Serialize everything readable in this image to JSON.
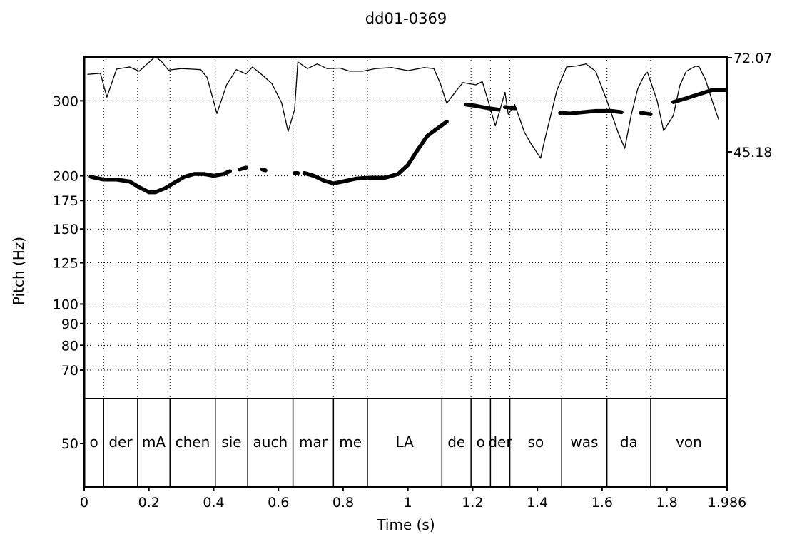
{
  "chart_data": {
    "type": "line",
    "title": "dd01-0369",
    "xlabel": "Time (s)",
    "ylabel": "Pitch (Hz)",
    "x_range": [
      0,
      1.986
    ],
    "x_ticks": [
      "0",
      "0.2",
      "0.4",
      "0.6",
      "0.8",
      "1",
      "1.2",
      "1.4",
      "1.6",
      "1.8",
      "1.986"
    ],
    "y_range": [
      60,
      380
    ],
    "y_scale": "log",
    "y_ticks": [
      "50",
      "70",
      "80",
      "90",
      "100",
      "125",
      "150",
      "175",
      "200",
      "300"
    ],
    "right_axis_labels": [
      "72.07",
      "45.18"
    ],
    "grid": true,
    "words": [
      {
        "label": "o",
        "start": 0.0,
        "end": 0.06
      },
      {
        "label": "der",
        "start": 0.06,
        "end": 0.165
      },
      {
        "label": "mA",
        "start": 0.165,
        "end": 0.265
      },
      {
        "label": "chen",
        "start": 0.265,
        "end": 0.405
      },
      {
        "label": "sie",
        "start": 0.405,
        "end": 0.505
      },
      {
        "label": "auch",
        "start": 0.505,
        "end": 0.645
      },
      {
        "label": "mar",
        "start": 0.645,
        "end": 0.77
      },
      {
        "label": "me",
        "start": 0.77,
        "end": 0.875
      },
      {
        "label": "LA",
        "start": 0.875,
        "end": 1.105
      },
      {
        "label": "de",
        "start": 1.105,
        "end": 1.195
      },
      {
        "label": "o",
        "start": 1.195,
        "end": 1.255
      },
      {
        "label": "der",
        "start": 1.255,
        "end": 1.315
      },
      {
        "label": "so",
        "start": 1.315,
        "end": 1.475
      },
      {
        "label": "was",
        "start": 1.475,
        "end": 1.615
      },
      {
        "label": "da",
        "start": 1.615,
        "end": 1.75
      },
      {
        "label": "von",
        "start": 1.75,
        "end": 1.986
      }
    ],
    "series": [
      {
        "name": "pitch",
        "style": "thick",
        "segments": [
          [
            [
              0.02,
              199
            ],
            [
              0.06,
              196
            ],
            [
              0.1,
              196
            ],
            [
              0.14,
              194
            ],
            [
              0.17,
              188
            ],
            [
              0.2,
              183
            ],
            [
              0.22,
              183
            ],
            [
              0.25,
              187
            ],
            [
              0.28,
              193
            ],
            [
              0.31,
              199
            ],
            [
              0.34,
              202
            ],
            [
              0.37,
              202
            ],
            [
              0.4,
              200
            ],
            [
              0.43,
              202
            ],
            [
              0.45,
              205
            ]
          ],
          [
            [
              0.48,
              207
            ],
            [
              0.5,
              209
            ]
          ],
          [
            [
              0.55,
              207
            ],
            [
              0.56,
              206
            ]
          ],
          [
            [
              0.65,
              203
            ],
            [
              0.66,
              203
            ]
          ],
          [
            [
              0.68,
              203
            ],
            [
              0.71,
              200
            ],
            [
              0.74,
              195
            ],
            [
              0.77,
              192
            ],
            [
              0.8,
              194
            ],
            [
              0.84,
              197
            ],
            [
              0.88,
              198
            ],
            [
              0.93,
              198
            ],
            [
              0.97,
              202
            ],
            [
              1.0,
              212
            ],
            [
              1.03,
              230
            ],
            [
              1.06,
              248
            ],
            [
              1.09,
              258
            ],
            [
              1.12,
              268
            ]
          ],
          [
            [
              1.18,
              294
            ],
            [
              1.21,
              292
            ],
            [
              1.25,
              288
            ],
            [
              1.28,
              286
            ]
          ],
          [
            [
              1.3,
              290
            ],
            [
              1.33,
              288
            ]
          ],
          [
            [
              1.47,
              281
            ],
            [
              1.5,
              280
            ],
            [
              1.54,
              282
            ],
            [
              1.58,
              284
            ],
            [
              1.63,
              284
            ],
            [
              1.66,
              282
            ]
          ],
          [
            [
              1.72,
              281
            ],
            [
              1.75,
              279
            ]
          ],
          [
            [
              1.82,
              298
            ],
            [
              1.86,
              304
            ],
            [
              1.9,
              311
            ],
            [
              1.94,
              318
            ],
            [
              1.98,
              318
            ]
          ]
        ]
      },
      {
        "name": "intensity",
        "style": "thin",
        "points": [
          [
            0.01,
            346
          ],
          [
            0.05,
            348
          ],
          [
            0.07,
            306
          ],
          [
            0.1,
            356
          ],
          [
            0.14,
            360
          ],
          [
            0.17,
            352
          ],
          [
            0.22,
            381
          ],
          [
            0.24,
            370
          ],
          [
            0.26,
            354
          ],
          [
            0.3,
            357
          ],
          [
            0.33,
            356
          ],
          [
            0.36,
            355
          ],
          [
            0.38,
            340
          ],
          [
            0.41,
            280
          ],
          [
            0.44,
            327
          ],
          [
            0.47,
            355
          ],
          [
            0.5,
            347
          ],
          [
            0.52,
            360
          ],
          [
            0.55,
            345
          ],
          [
            0.58,
            329
          ],
          [
            0.61,
            297
          ],
          [
            0.63,
            254
          ],
          [
            0.65,
            286
          ],
          [
            0.66,
            370
          ],
          [
            0.69,
            357
          ],
          [
            0.72,
            366
          ],
          [
            0.75,
            357
          ],
          [
            0.79,
            358
          ],
          [
            0.82,
            352
          ],
          [
            0.86,
            352
          ],
          [
            0.9,
            357
          ],
          [
            0.95,
            359
          ],
          [
            1.0,
            353
          ],
          [
            1.05,
            359
          ],
          [
            1.08,
            357
          ],
          [
            1.1,
            330
          ],
          [
            1.12,
            296
          ],
          [
            1.15,
            317
          ],
          [
            1.17,
            331
          ],
          [
            1.21,
            327
          ],
          [
            1.23,
            333
          ],
          [
            1.25,
            296
          ],
          [
            1.27,
            262
          ],
          [
            1.3,
            314
          ],
          [
            1.31,
            279
          ],
          [
            1.33,
            294
          ],
          [
            1.36,
            253
          ],
          [
            1.38,
            238
          ],
          [
            1.41,
            220
          ],
          [
            1.42,
            238
          ],
          [
            1.46,
            317
          ],
          [
            1.49,
            360
          ],
          [
            1.52,
            362
          ],
          [
            1.55,
            366
          ],
          [
            1.58,
            352
          ],
          [
            1.61,
            307
          ],
          [
            1.65,
            252
          ],
          [
            1.67,
            232
          ],
          [
            1.69,
            278
          ],
          [
            1.71,
            320
          ],
          [
            1.73,
            344
          ],
          [
            1.74,
            350
          ],
          [
            1.77,
            300
          ],
          [
            1.79,
            255
          ],
          [
            1.82,
            277
          ],
          [
            1.84,
            326
          ],
          [
            1.86,
            352
          ],
          [
            1.89,
            362
          ],
          [
            1.9,
            360
          ],
          [
            1.92,
            335
          ],
          [
            1.94,
            300
          ],
          [
            1.96,
            271
          ]
        ]
      }
    ]
  }
}
